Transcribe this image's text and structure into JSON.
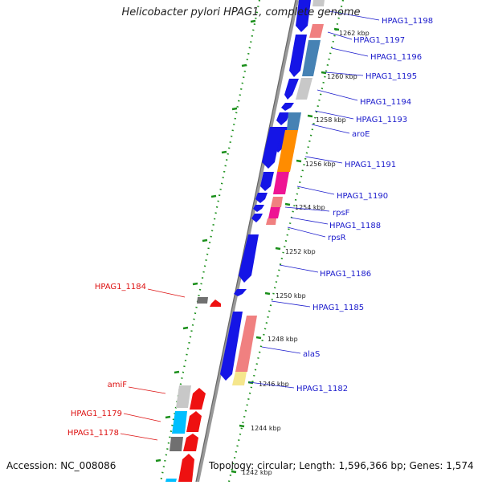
{
  "title": "Helicobacter pylori HPAG1, complete genome",
  "accession": "Accession: NC_008086",
  "topology": "Topology: circular; Length: 1,596,366 bp; Genes: 1,574",
  "colors": {
    "backbone": "#999999",
    "tick": "#1a8f1a",
    "forward_label": "#1a1acc",
    "reverse_label": "#dd1111",
    "gene_blue": "#1515e6",
    "gene_red": "#ee1111"
  },
  "kbp_labels": [
    "1262 kbp",
    "1260 kbp",
    "1258 kbp",
    "1256 kbp",
    "1254 kbp",
    "1252 kbp",
    "1250 kbp",
    "1248 kbp",
    "1246 kbp",
    "1244 kbp",
    "1242 kbp"
  ],
  "forward_genes": [
    "HPAG1_1198",
    "HPAG1_1197",
    "HPAG1_1196",
    "HPAG1_1195",
    "HPAG1_1194",
    "HPAG1_1193",
    "aroE",
    "HPAG1_1191",
    "HPAG1_1190",
    "rpsF",
    "HPAG1_1188",
    "rpsR",
    "HPAG1_1186",
    "HPAG1_1185",
    "alaS",
    "HPAG1_1182"
  ],
  "reverse_genes": [
    "HPAG1_1184",
    "amiF",
    "HPAG1_1179",
    "HPAG1_1178"
  ],
  "cog_colors": {
    "pink": "#f08080",
    "steel": "#4682b4",
    "silver": "#c8c8c8",
    "orange": "#ff8c00",
    "magenta": "#ee1493",
    "yellow": "#f5e68c",
    "sky": "#00bfff",
    "gray": "#707070"
  }
}
